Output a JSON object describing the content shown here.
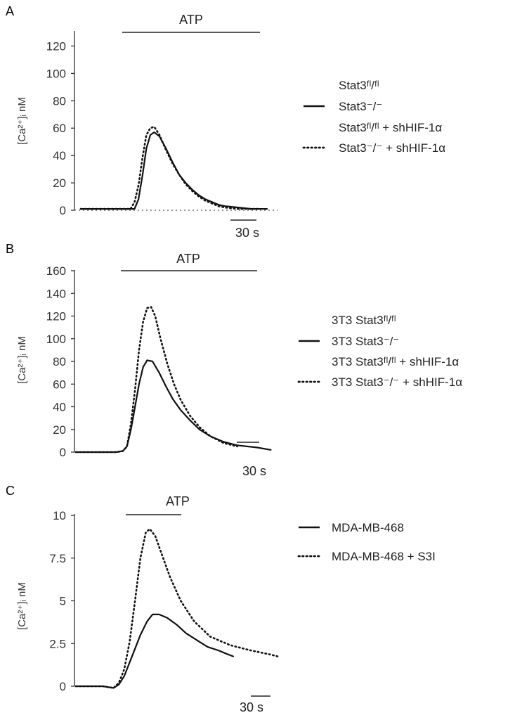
{
  "figure": {
    "panels": [
      "A",
      "B",
      "C"
    ],
    "stimulus_label": "ATP",
    "scale_bar_label": "30 s",
    "y_axis_labels": [
      "[Ca²⁺]ᵢ nM",
      "[Ca²⁺]ᵢ nM",
      "[Ca²⁺]ᵢ nM"
    ]
  },
  "chart_data": [
    {
      "type": "line",
      "panel": "A",
      "ylabel": "[Ca²⁺]ᵢ nM",
      "ylim": [
        0,
        130
      ],
      "yticks": [
        0,
        20,
        40,
        60,
        80,
        100,
        120
      ],
      "xlim": [
        0,
        150
      ],
      "stimulus": {
        "label": "ATP",
        "start": 30,
        "end": 130
      },
      "scale_bar": {
        "label": "30 s",
        "seconds": 30
      },
      "legend": [
        {
          "label": "Stat3ᶠˡ/ᶠˡ",
          "style": "none"
        },
        {
          "label": "Stat3⁻/⁻",
          "style": "solid"
        },
        {
          "label": "Stat3ᶠˡ/ᶠˡ + shHIF-1α",
          "style": "none"
        },
        {
          "label": "Stat3⁻/⁻ + shHIF-1α",
          "style": "dotted"
        }
      ],
      "series": [
        {
          "name": "Stat3⁻/⁻",
          "style": "solid",
          "x": [
            0,
            41,
            44,
            47,
            50,
            53,
            56,
            60,
            65,
            70,
            75,
            80,
            85,
            90,
            95,
            100,
            105,
            110,
            115,
            120,
            125,
            130,
            135,
            138,
            142
          ],
          "y": [
            1,
            1,
            8,
            25,
            45,
            55,
            57,
            54,
            45,
            35,
            26,
            20,
            15,
            11,
            8,
            6,
            4,
            3,
            2.5,
            2,
            1.5,
            1,
            1,
            1,
            1
          ]
        },
        {
          "name": "Stat3⁻/⁻ + shHIF-1α",
          "style": "dotted",
          "x": [
            0,
            38,
            41,
            44,
            47,
            50,
            53,
            56,
            60,
            65,
            70,
            75,
            80,
            85,
            90,
            95,
            100,
            105,
            110,
            115,
            120,
            125,
            130,
            133,
            137
          ],
          "y": [
            1,
            1,
            6,
            18,
            38,
            55,
            60,
            61,
            55,
            44,
            34,
            26,
            19,
            14,
            10,
            7,
            5,
            3,
            2,
            1.5,
            1,
            1,
            1,
            1,
            1
          ]
        }
      ]
    },
    {
      "type": "line",
      "panel": "B",
      "ylabel": "[Ca²⁺]ᵢ nM",
      "ylim": [
        0,
        160
      ],
      "yticks": [
        0,
        20,
        40,
        60,
        80,
        100,
        120,
        140,
        160
      ],
      "xlim": [
        0,
        150
      ],
      "stimulus": {
        "label": "ATP",
        "start": 36,
        "end": 147
      },
      "scale_bar": {
        "label": "30 s",
        "seconds": 30
      },
      "legend": [
        {
          "label": "3T3 Stat3ᶠˡ/ᶠˡ",
          "style": "none"
        },
        {
          "label": "3T3 Stat3⁻/⁻",
          "style": "solid"
        },
        {
          "label": "3T3 Stat3ᶠˡ/ᶠˡ + shHIF-1α",
          "style": "none"
        },
        {
          "label": "3T3 Stat3⁻/⁻ + shHIF-1α",
          "style": "dotted"
        }
      ],
      "series": [
        {
          "name": "3T3 Stat3⁻/⁻",
          "style": "solid",
          "x": [
            0,
            30,
            35,
            38,
            41,
            44,
            47,
            50,
            53,
            57,
            62,
            67,
            72,
            78,
            85,
            92,
            100,
            110,
            120,
            135,
            145
          ],
          "y": [
            0,
            0,
            1,
            5,
            20,
            40,
            60,
            75,
            81,
            80,
            70,
            58,
            47,
            37,
            28,
            20,
            14,
            9,
            6,
            4,
            2
          ]
        },
        {
          "name": "3T3 Stat3⁻/⁻ + shHIF-1α",
          "style": "dotted",
          "x": [
            0,
            30,
            35,
            38,
            41,
            44,
            47,
            50,
            53,
            56,
            59,
            63,
            68,
            73,
            78,
            85,
            92,
            100,
            110,
            120
          ],
          "y": [
            0,
            0,
            1,
            5,
            25,
            55,
            90,
            115,
            127,
            128,
            120,
            100,
            78,
            60,
            46,
            32,
            22,
            14,
            8,
            5
          ]
        }
      ]
    },
    {
      "type": "line",
      "panel": "C",
      "ylabel": "[Ca²⁺]ᵢ nM",
      "ylim": [
        0,
        10
      ],
      "yticks": [
        0,
        2.5,
        5,
        7.5,
        10
      ],
      "ytick_labels": [
        "0",
        "2.5",
        "5",
        "7.5",
        "10"
      ],
      "xlim": [
        0,
        150
      ],
      "stimulus": {
        "label": "ATP",
        "start": 37,
        "end": 79
      },
      "scale_bar": {
        "label": "30 s",
        "seconds": 30
      },
      "legend": [
        {
          "label": "MDA-MB-468",
          "style": "solid"
        },
        {
          "label": "MDA-MB-468 + S3I",
          "style": "dotted"
        }
      ],
      "series": [
        {
          "name": "MDA-MB-468",
          "style": "solid",
          "x": [
            0,
            20,
            28,
            32,
            36,
            42,
            48,
            53,
            57,
            62,
            68,
            75,
            82,
            90,
            98,
            106,
            112,
            117
          ],
          "y": [
            0,
            0,
            -0.1,
            0.1,
            0.6,
            1.8,
            3.0,
            3.8,
            4.2,
            4.2,
            4.0,
            3.6,
            3.1,
            2.7,
            2.3,
            2.1,
            1.9,
            1.75
          ]
        },
        {
          "name": "MDA-MB-468 + S3I",
          "style": "dotted",
          "x": [
            0,
            20,
            28,
            32,
            36,
            40,
            44,
            48,
            52,
            55,
            59,
            64,
            70,
            78,
            88,
            100,
            115,
            130,
            145,
            150
          ],
          "y": [
            0,
            0,
            -0.1,
            0.2,
            1.0,
            2.6,
            5.0,
            7.5,
            9.0,
            9.2,
            8.8,
            7.7,
            6.4,
            5.0,
            3.8,
            2.9,
            2.4,
            2.1,
            1.85,
            1.75
          ]
        }
      ]
    }
  ]
}
